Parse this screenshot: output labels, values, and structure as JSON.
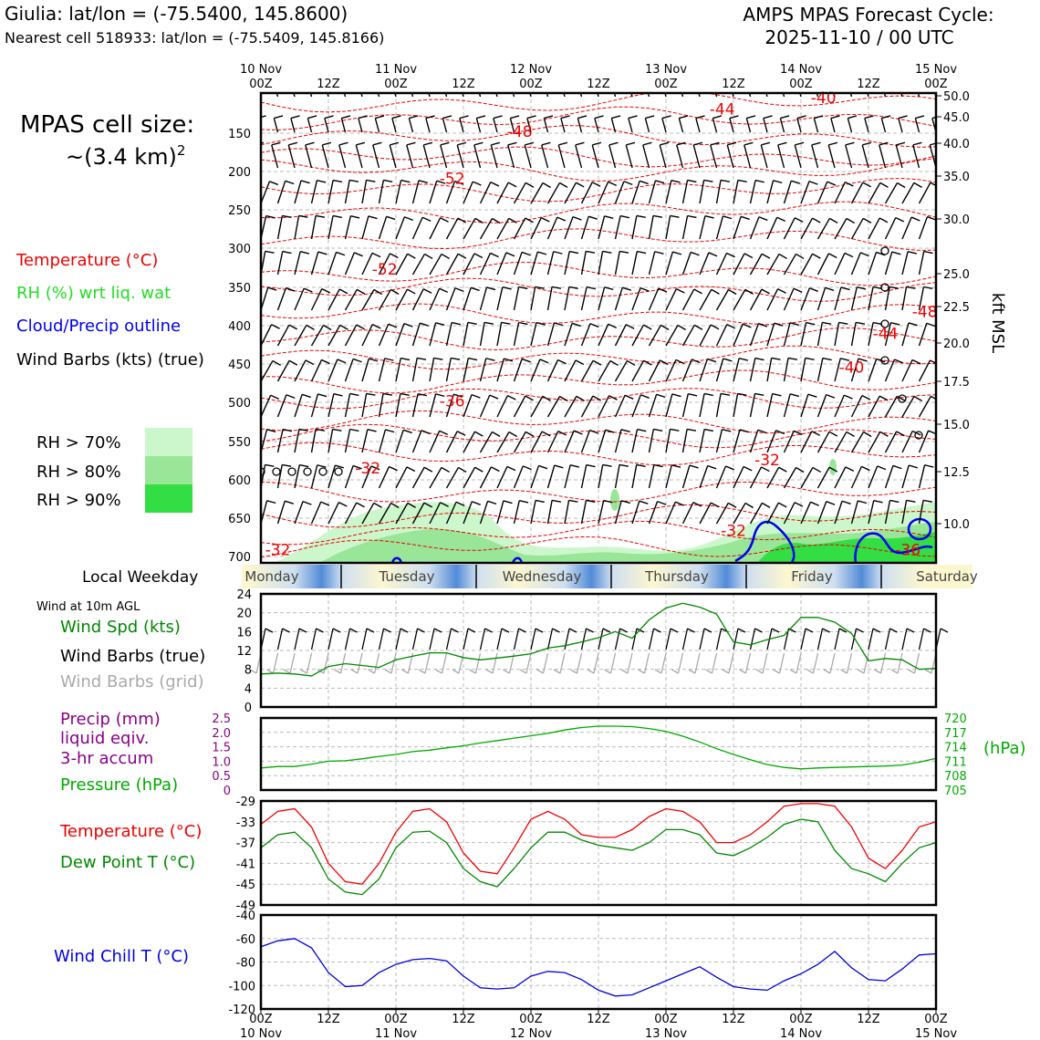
{
  "header": {
    "location": "Giulia: lat/lon = (-75.5400, 145.8600)",
    "nearest": "Nearest cell 518933: lat/lon = (-75.5409, 145.8166)",
    "product": "AMPS MPAS Forecast Cycle:",
    "cycle": "2025-11-10 / 00 UTC"
  },
  "legend": {
    "cell_size_line1": "MPAS cell size:",
    "cell_size_line2": "~(3.4 km)",
    "cell_size_exp": "2",
    "temperature": "Temperature (°C)",
    "rh": "RH (%) wrt liq. wat",
    "cloud": "Cloud/Precip outline",
    "barbs": "Wind Barbs (kts) (true)",
    "rh70": "RH > 70%",
    "rh80": "RH > 80%",
    "rh90": "RH > 90%",
    "local_weekday": "Local Weekday",
    "wind10m": "Wind at 10m AGL",
    "wind_spd": "Wind Spd (kts)",
    "barbs_true": "Wind Barbs (true)",
    "barbs_grid": "Wind Barbs (grid)",
    "precip1": "Precip (mm)",
    "precip2": "liquid eqiv.",
    "precip3": "3-hr accum",
    "pressure": "Pressure (hPa)",
    "pressure_unit": "(hPa)",
    "temp2": "Temperature (°C)",
    "dewpoint": "Dew Point T (°C)",
    "windchill": "Wind Chill T (°C)",
    "kft": "kft MSL"
  },
  "colors": {
    "temp": "#ee0000",
    "rh_text": "#22dd22",
    "cloud": "#0000ee",
    "pressure": "#00aa00",
    "dew": "#008800",
    "precip": "#880088",
    "chill": "#0000dd",
    "rh70": "#ccf7cc",
    "rh80": "#99e699",
    "rh90": "#33dd44"
  },
  "chart_data": {
    "top_time_labels": [
      {
        "day": "10 Nov",
        "hour": "00Z",
        "h": 0
      },
      {
        "day": "",
        "hour": "12Z",
        "h": 12
      },
      {
        "day": "11 Nov",
        "hour": "00Z",
        "h": 24
      },
      {
        "day": "",
        "hour": "12Z",
        "h": 36
      },
      {
        "day": "12 Nov",
        "hour": "00Z",
        "h": 48
      },
      {
        "day": "",
        "hour": "12Z",
        "h": 60
      },
      {
        "day": "13 Nov",
        "hour": "00Z",
        "h": 72
      },
      {
        "day": "",
        "hour": "12Z",
        "h": 84
      },
      {
        "day": "14 Nov",
        "hour": "00Z",
        "h": 96
      },
      {
        "day": "",
        "hour": "12Z",
        "h": 108
      },
      {
        "day": "15 Nov",
        "hour": "00Z",
        "h": 120
      }
    ],
    "cross_section": {
      "type": "heatmap",
      "pressure_ticks": [
        "150",
        "200",
        "250",
        "300",
        "350",
        "400",
        "450",
        "500",
        "550",
        "600",
        "650",
        "700"
      ],
      "kft_ticks": [
        "50.0",
        "45.0",
        "40.0",
        "35.0",
        "30.0",
        "25.0",
        "22.5",
        "20.0",
        "17.5",
        "15.0",
        "12.5",
        "10.0"
      ],
      "pressure_range_hpa": [
        100,
        710
      ],
      "contour_labels": [
        {
          "text": "-44",
          "h": 82,
          "p": 128
        },
        {
          "text": "-40",
          "h": 100,
          "p": 113
        },
        {
          "text": "-48",
          "h": 46,
          "p": 157
        },
        {
          "text": "-52",
          "h": 34,
          "p": 218
        },
        {
          "text": "-52",
          "h": 22,
          "p": 336
        },
        {
          "text": "-48",
          "h": 118,
          "p": 391
        },
        {
          "text": "-44",
          "h": 111,
          "p": 419
        },
        {
          "text": "-40",
          "h": 105,
          "p": 463
        },
        {
          "text": "-36",
          "h": 34,
          "p": 507
        },
        {
          "text": "-32",
          "h": 19,
          "p": 594
        },
        {
          "text": "-32",
          "h": 90,
          "p": 583
        },
        {
          "text": "-32",
          "h": 84,
          "p": 675
        },
        {
          "text": "-32",
          "h": 3,
          "p": 700
        },
        {
          "text": "-36",
          "h": 115,
          "p": 700
        }
      ]
    },
    "weekdays": [
      "Monday",
      "Tuesday",
      "Wednesday",
      "Thursday",
      "Friday",
      "Saturday"
    ],
    "wind10m": {
      "type": "line",
      "yticks": [
        "0",
        "4",
        "8",
        "12",
        "16",
        "20",
        "24"
      ],
      "ylim": [
        0,
        24
      ],
      "hours": [
        0,
        3,
        6,
        9,
        12,
        15,
        18,
        21,
        24,
        27,
        30,
        33,
        36,
        39,
        42,
        45,
        48,
        51,
        54,
        57,
        60,
        63,
        66,
        69,
        72,
        75,
        78,
        81,
        84,
        87,
        90,
        93,
        96,
        99,
        102,
        105,
        108,
        111,
        114,
        117,
        120
      ],
      "speed_kts": [
        7,
        7.2,
        7,
        6.6,
        8.6,
        9.2,
        8.8,
        8.4,
        10,
        10.8,
        11.5,
        11.5,
        10.5,
        10,
        10.4,
        10.8,
        11.3,
        12.5,
        13,
        13.8,
        14.7,
        16,
        14.6,
        18.5,
        21,
        22,
        21.2,
        19.7,
        13.8,
        13.2,
        14.3,
        15.2,
        19,
        19,
        18,
        15.6,
        9.8,
        10.3,
        10,
        8,
        8.2
      ]
    },
    "precip_pressure": {
      "type": "line",
      "precip_ticks": [
        "0",
        "0.5",
        "1.0",
        "1.5",
        "2.0",
        "2.5"
      ],
      "pressure_ticks": [
        "705",
        "708",
        "711",
        "714",
        "717",
        "720"
      ],
      "pressure_range": [
        705,
        720
      ],
      "hours": [
        0,
        3,
        6,
        9,
        12,
        15,
        18,
        21,
        24,
        27,
        30,
        33,
        36,
        39,
        42,
        45,
        48,
        51,
        54,
        57,
        60,
        63,
        66,
        69,
        72,
        75,
        78,
        81,
        84,
        87,
        90,
        93,
        96,
        99,
        102,
        105,
        108,
        111,
        114,
        117,
        120
      ],
      "pressure_hpa": [
        709.6,
        709.9,
        709.9,
        710.4,
        711.0,
        711.1,
        711.5,
        712.0,
        712.4,
        713.0,
        713.3,
        713.8,
        714.2,
        714.8,
        715.3,
        715.8,
        716.3,
        716.8,
        717.5,
        718.0,
        718.3,
        718.3,
        718.2,
        717.8,
        717.2,
        716.2,
        715.0,
        713.6,
        712.4,
        711.3,
        710.3,
        709.7,
        709.4,
        709.6,
        709.7,
        709.8,
        709.9,
        710.0,
        710.2,
        710.8,
        711.6
      ]
    },
    "temperature": {
      "type": "line",
      "yticks": [
        "-29",
        "-33",
        "-37",
        "-41",
        "-45",
        "-49"
      ],
      "ylim": [
        -49,
        -29
      ],
      "hours": [
        0,
        3,
        6,
        9,
        12,
        15,
        18,
        21,
        24,
        27,
        30,
        33,
        36,
        39,
        42,
        45,
        48,
        51,
        54,
        57,
        60,
        63,
        66,
        69,
        72,
        75,
        78,
        81,
        84,
        87,
        90,
        93,
        96,
        99,
        102,
        105,
        108,
        111,
        114,
        117,
        120
      ],
      "temp_c": [
        -33.5,
        -31,
        -30.5,
        -34,
        -41,
        -44.5,
        -45,
        -41,
        -35,
        -31,
        -30.5,
        -33,
        -39,
        -42.5,
        -43,
        -38,
        -32.5,
        -31,
        -32.5,
        -35.5,
        -36,
        -36,
        -34.5,
        -32,
        -30.5,
        -31,
        -33,
        -37,
        -37,
        -35.5,
        -33,
        -30,
        -29.5,
        -29.5,
        -30,
        -34,
        -40,
        -42,
        -38.5,
        -34,
        -33
      ],
      "dewpoint_c": [
        -38,
        -35.5,
        -35,
        -38,
        -44,
        -46.5,
        -47,
        -44,
        -38,
        -35,
        -34.8,
        -37,
        -42,
        -44.5,
        -45.5,
        -42,
        -38,
        -35,
        -35,
        -36.5,
        -37.5,
        -38,
        -38.5,
        -37,
        -34.5,
        -34.5,
        -35.5,
        -39,
        -39.5,
        -38,
        -36,
        -33.5,
        -32.5,
        -33,
        -38.5,
        -42,
        -43,
        -44.5,
        -41,
        -38,
        -37
      ]
    },
    "windchill": {
      "type": "line",
      "yticks": [
        "-40",
        "-60",
        "-80",
        "-100",
        "-120"
      ],
      "ylim": [
        -120,
        -40
      ],
      "hours": [
        0,
        3,
        6,
        9,
        12,
        15,
        18,
        21,
        24,
        27,
        30,
        33,
        36,
        39,
        42,
        45,
        48,
        51,
        54,
        57,
        60,
        63,
        66,
        69,
        72,
        75,
        78,
        81,
        84,
        87,
        90,
        93,
        96,
        99,
        102,
        105,
        108,
        111,
        114,
        117,
        120
      ],
      "chill_c": [
        -67,
        -62,
        -60,
        -68,
        -89,
        -101,
        -100,
        -89,
        -82,
        -78,
        -77,
        -79,
        -92,
        -102,
        -103,
        -102,
        -92,
        -88,
        -89,
        -95,
        -104,
        -109,
        -108,
        -102,
        -96,
        -90,
        -84,
        -93,
        -101,
        -103,
        -104,
        -96,
        -90,
        -82,
        -71,
        -85,
        -95,
        -96,
        -86,
        -74,
        -73
      ]
    },
    "bottom_time_labels": [
      {
        "day": "10 Nov",
        "hour": "00Z",
        "h": 0
      },
      {
        "day": "",
        "hour": "12Z",
        "h": 12
      },
      {
        "day": "11 Nov",
        "hour": "00Z",
        "h": 24
      },
      {
        "day": "",
        "hour": "12Z",
        "h": 36
      },
      {
        "day": "12 Nov",
        "hour": "00Z",
        "h": 48
      },
      {
        "day": "",
        "hour": "12Z",
        "h": 60
      },
      {
        "day": "13 Nov",
        "hour": "00Z",
        "h": 72
      },
      {
        "day": "",
        "hour": "12Z",
        "h": 84
      },
      {
        "day": "14 Nov",
        "hour": "00Z",
        "h": 96
      },
      {
        "day": "",
        "hour": "12Z",
        "h": 108
      },
      {
        "day": "15 Nov",
        "hour": "00Z",
        "h": 120
      }
    ]
  }
}
